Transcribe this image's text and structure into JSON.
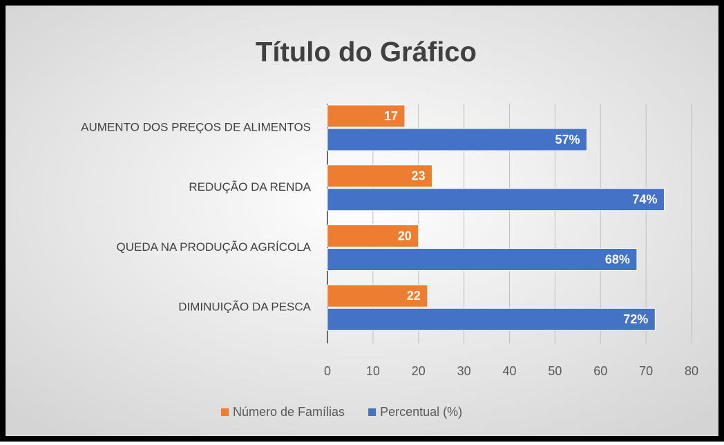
{
  "chart_data": {
    "type": "bar",
    "orientation": "horizontal",
    "title": "Título do Gráfico",
    "categories": [
      "AUMENTO DOS PREÇOS DE ALIMENTOS",
      "REDUÇÃO DA RENDA",
      "QUEDA NA PRODUÇÃO AGRÍCOLA",
      "DIMINUIÇÃO DA PESCA"
    ],
    "series": [
      {
        "name": "Número de Famílias",
        "color": "#ed7d31",
        "values": [
          17,
          23,
          20,
          22
        ]
      },
      {
        "name": "Percentual (%)",
        "color": "#4472c4",
        "values": [
          57,
          74,
          68,
          72
        ],
        "value_labels": [
          "57%",
          "74%",
          "68%",
          "72%"
        ]
      }
    ],
    "xlim": [
      0,
      80
    ],
    "xticks": [
      0,
      10,
      20,
      30,
      40,
      50,
      60,
      70,
      80
    ],
    "grid": true,
    "legend": "bottom"
  }
}
